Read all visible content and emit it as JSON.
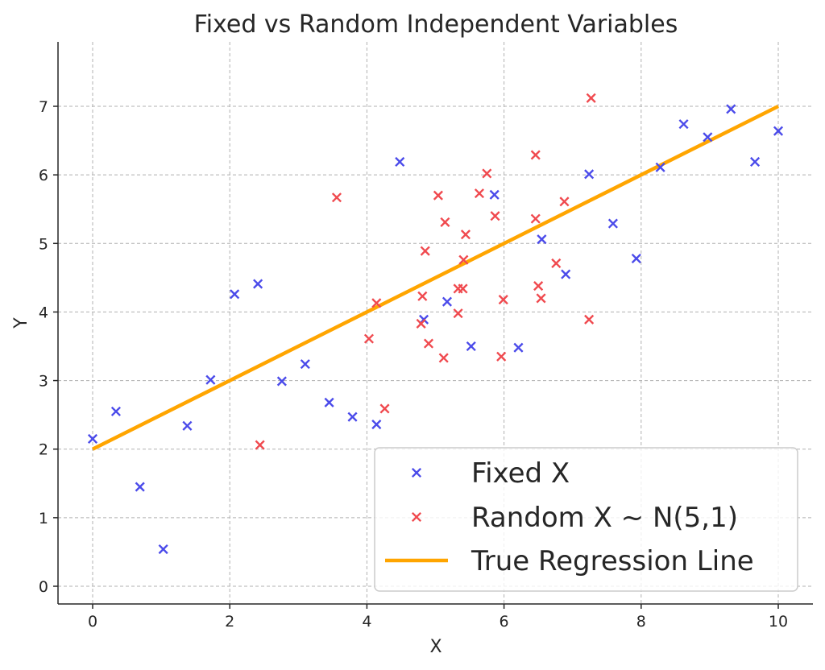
{
  "chart_data": {
    "type": "scatter",
    "title": "Fixed vs Random Independent Variables",
    "xlabel": "X",
    "ylabel": "Y",
    "xlim": [
      -0.5,
      10.5
    ],
    "ylim": [
      -0.25,
      7.9
    ],
    "xticks": [
      0,
      2,
      4,
      6,
      8,
      10
    ],
    "yticks": [
      0,
      1,
      2,
      3,
      4,
      5,
      6,
      7
    ],
    "grid": true,
    "legend_position": "lower-right",
    "series": [
      {
        "name": "Fixed X",
        "marker": "x",
        "color": "#4b4bea",
        "points": [
          [
            0.0,
            2.15
          ],
          [
            0.34,
            2.55
          ],
          [
            0.69,
            1.45
          ],
          [
            1.03,
            0.54
          ],
          [
            1.38,
            2.34
          ],
          [
            1.72,
            3.01
          ],
          [
            2.07,
            4.26
          ],
          [
            2.41,
            4.41
          ],
          [
            2.76,
            2.99
          ],
          [
            3.1,
            3.24
          ],
          [
            3.45,
            2.68
          ],
          [
            3.79,
            2.47
          ],
          [
            4.14,
            2.36
          ],
          [
            4.48,
            6.19
          ],
          [
            4.83,
            3.89
          ],
          [
            5.17,
            4.15
          ],
          [
            5.52,
            3.5
          ],
          [
            5.86,
            5.71
          ],
          [
            6.21,
            3.48
          ],
          [
            6.55,
            5.06
          ],
          [
            6.9,
            4.55
          ],
          [
            7.24,
            6.01
          ],
          [
            7.59,
            5.29
          ],
          [
            7.93,
            4.78
          ],
          [
            8.28,
            6.11
          ],
          [
            8.62,
            6.74
          ],
          [
            8.97,
            6.55
          ],
          [
            9.31,
            6.96
          ],
          [
            9.66,
            6.19
          ],
          [
            10.0,
            6.64
          ]
        ]
      },
      {
        "name": "Random X ~ N(5,1)",
        "marker": "x",
        "color": "#f04a4f",
        "points": [
          [
            2.44,
            2.06
          ],
          [
            3.56,
            5.67
          ],
          [
            4.03,
            3.61
          ],
          [
            4.14,
            4.13
          ],
          [
            4.26,
            2.59
          ],
          [
            4.79,
            3.83
          ],
          [
            4.81,
            4.23
          ],
          [
            4.85,
            4.89
          ],
          [
            4.9,
            3.54
          ],
          [
            5.04,
            5.7
          ],
          [
            5.12,
            3.33
          ],
          [
            5.14,
            5.31
          ],
          [
            5.33,
            4.34
          ],
          [
            5.33,
            3.98
          ],
          [
            5.4,
            4.34
          ],
          [
            5.41,
            4.76
          ],
          [
            5.44,
            5.13
          ],
          [
            5.64,
            5.73
          ],
          [
            5.75,
            6.02
          ],
          [
            5.87,
            5.4
          ],
          [
            5.96,
            3.35
          ],
          [
            5.99,
            4.18
          ],
          [
            6.46,
            5.36
          ],
          [
            6.46,
            6.29
          ],
          [
            6.5,
            4.38
          ],
          [
            6.54,
            4.2
          ],
          [
            6.76,
            4.71
          ],
          [
            6.88,
            5.61
          ],
          [
            7.24,
            3.89
          ],
          [
            7.27,
            7.12
          ]
        ]
      }
    ],
    "lines": [
      {
        "name": "True Regression Line",
        "color": "#ffa500",
        "x": [
          0,
          10
        ],
        "y": [
          2,
          7
        ]
      }
    ]
  }
}
